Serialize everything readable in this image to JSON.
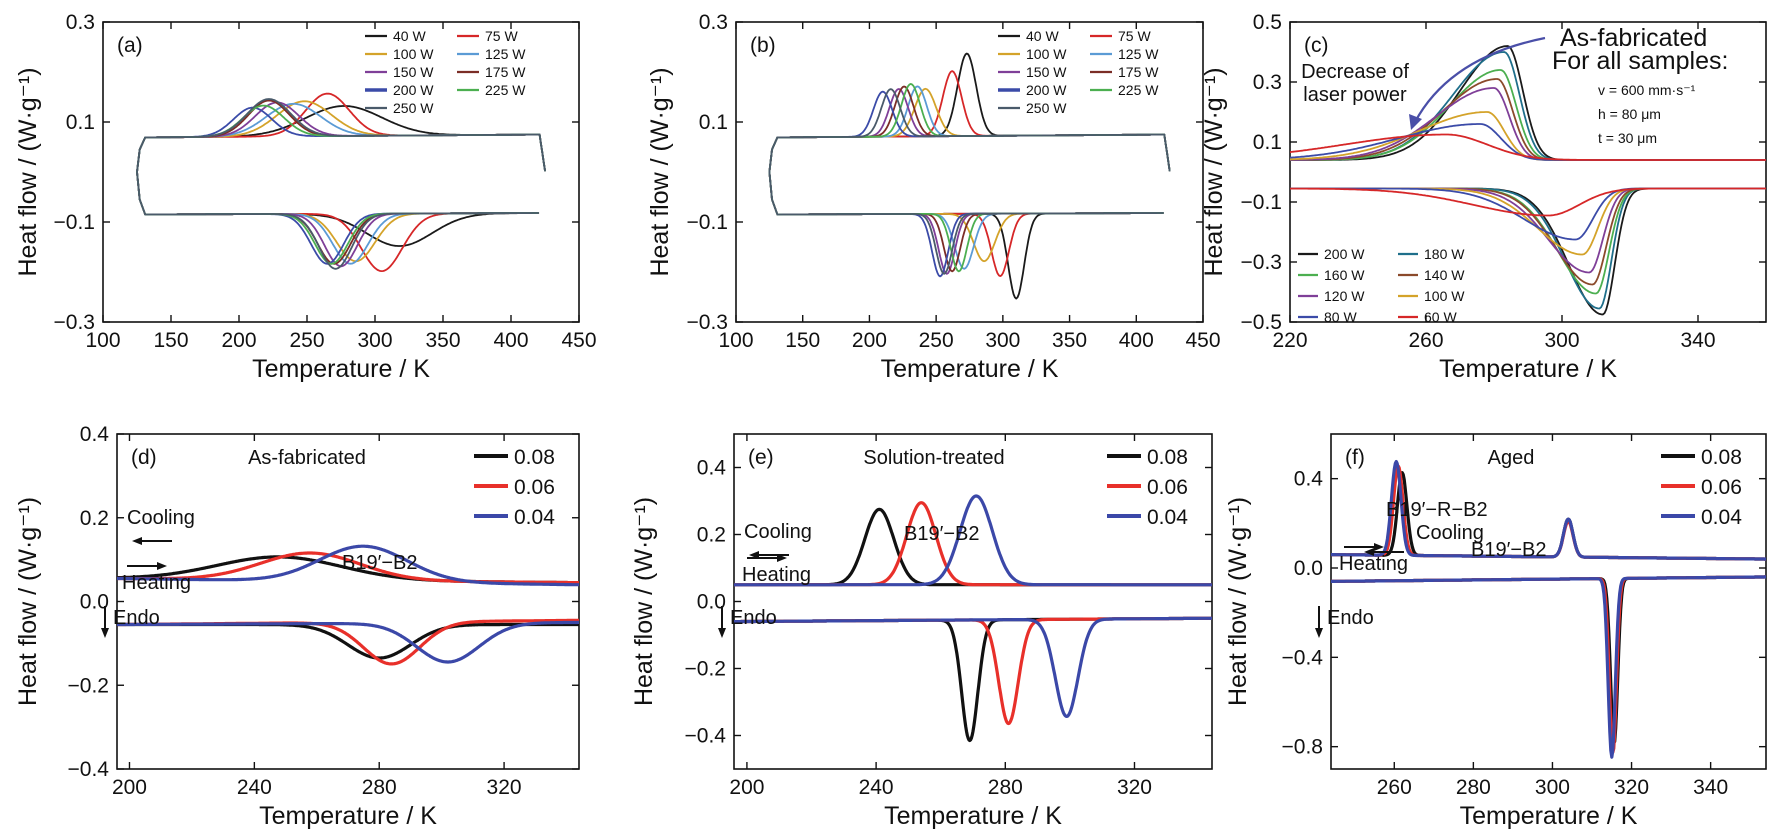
{
  "chart_data": [
    {
      "id": "a",
      "type": "line",
      "panel_label": "(a)",
      "xlabel": "Temperature / K",
      "ylabel": "Heat flow / (W·g⁻¹)",
      "xlim": [
        100,
        450
      ],
      "ylim": [
        -0.3,
        0.3
      ],
      "xticks": [
        100,
        150,
        200,
        250,
        300,
        350,
        400,
        450
      ],
      "yticks": [
        -0.3,
        -0.1,
        0.1,
        0.3
      ],
      "ytick_labels": [
        "−0.3",
        "−0.1",
        "0.1",
        "0.3"
      ],
      "legend_position": "top-right",
      "legend_columns": 2,
      "loop": {
        "x_start": 125,
        "x_end": 425,
        "cool_base": 0.075,
        "heat_base": -0.085
      },
      "series": [
        {
          "name": "40 W",
          "color": "#1a1a1a",
          "cool_peak": {
            "x": 277,
            "h": 0.06,
            "w": 28
          },
          "heat_peak": {
            "x": 318,
            "depth": 0.065,
            "w": 24
          }
        },
        {
          "name": "75 W",
          "color": "#d62728",
          "cool_peak": {
            "x": 265,
            "h": 0.085,
            "w": 16
          },
          "heat_peak": {
            "x": 305,
            "depth": 0.115,
            "w": 15
          }
        },
        {
          "name": "100 W",
          "color": "#d4a32a",
          "cool_peak": {
            "x": 248,
            "h": 0.07,
            "w": 20
          },
          "heat_peak": {
            "x": 286,
            "depth": 0.095,
            "w": 14
          }
        },
        {
          "name": "125 W",
          "color": "#5b9bd5",
          "cool_peak": {
            "x": 240,
            "h": 0.065,
            "w": 20
          },
          "heat_peak": {
            "x": 282,
            "depth": 0.1,
            "w": 13
          }
        },
        {
          "name": "150 W",
          "color": "#7f3f98",
          "cool_peak": {
            "x": 228,
            "h": 0.068,
            "w": 16
          },
          "heat_peak": {
            "x": 275,
            "depth": 0.105,
            "w": 12
          }
        },
        {
          "name": "175 W",
          "color": "#7b2d26",
          "cool_peak": {
            "x": 222,
            "h": 0.072,
            "w": 15
          },
          "heat_peak": {
            "x": 270,
            "depth": 0.1,
            "w": 12
          }
        },
        {
          "name": "200 W",
          "color": "#3b4ba8",
          "cool_peak": {
            "x": 210,
            "h": 0.058,
            "w": 14
          },
          "heat_peak": {
            "x": 265,
            "depth": 0.1,
            "w": 12
          }
        },
        {
          "name": "225 W",
          "color": "#4caf50",
          "cool_peak": {
            "x": 218,
            "h": 0.062,
            "w": 15
          },
          "heat_peak": {
            "x": 268,
            "depth": 0.1,
            "w": 12
          }
        },
        {
          "name": "250 W",
          "color": "#4a5a6a",
          "cool_peak": {
            "x": 222,
            "h": 0.075,
            "w": 16
          },
          "heat_peak": {
            "x": 271,
            "depth": 0.11,
            "w": 12
          }
        }
      ]
    },
    {
      "id": "b",
      "type": "line",
      "panel_label": "(b)",
      "xlabel": "Temperature / K",
      "ylabel": "Heat flow / (W·g⁻¹)",
      "xlim": [
        100,
        450
      ],
      "ylim": [
        -0.3,
        0.3
      ],
      "xticks": [
        100,
        150,
        200,
        250,
        300,
        350,
        400,
        450
      ],
      "yticks": [
        -0.3,
        -0.1,
        0.1,
        0.3
      ],
      "ytick_labels": [
        "−0.3",
        "−0.1",
        "0.1",
        "0.3"
      ],
      "legend_position": "top-right",
      "legend_columns": 2,
      "loop": {
        "x_start": 125,
        "x_end": 425,
        "cool_base": 0.075,
        "heat_base": -0.085
      },
      "series": [
        {
          "name": "40 W",
          "color": "#1a1a1a",
          "cool_peak": {
            "x": 273,
            "h": 0.165,
            "w": 7
          },
          "heat_peak": {
            "x": 310,
            "depth": 0.17,
            "w": 6
          }
        },
        {
          "name": "75 W",
          "color": "#d62728",
          "cool_peak": {
            "x": 262,
            "h": 0.13,
            "w": 7
          },
          "heat_peak": {
            "x": 298,
            "depth": 0.125,
            "w": 6.5
          }
        },
        {
          "name": "100 W",
          "color": "#d4a32a",
          "cool_peak": {
            "x": 242,
            "h": 0.095,
            "w": 8
          },
          "heat_peak": {
            "x": 286,
            "depth": 0.095,
            "w": 8
          }
        },
        {
          "name": "125 W",
          "color": "#5b9bd5",
          "cool_peak": {
            "x": 236,
            "h": 0.1,
            "w": 7
          },
          "heat_peak": {
            "x": 271,
            "depth": 0.11,
            "w": 7
          }
        },
        {
          "name": "150 W",
          "color": "#7f3f98",
          "cool_peak": {
            "x": 222,
            "h": 0.095,
            "w": 7
          },
          "heat_peak": {
            "x": 258,
            "depth": 0.12,
            "w": 6
          }
        },
        {
          "name": "175 W",
          "color": "#7b2d26",
          "cool_peak": {
            "x": 226,
            "h": 0.1,
            "w": 7
          },
          "heat_peak": {
            "x": 262,
            "depth": 0.115,
            "w": 6
          }
        },
        {
          "name": "200 W",
          "color": "#3b4ba8",
          "cool_peak": {
            "x": 210,
            "h": 0.09,
            "w": 7
          },
          "heat_peak": {
            "x": 253,
            "depth": 0.125,
            "w": 6
          }
        },
        {
          "name": "225 W",
          "color": "#4caf50",
          "cool_peak": {
            "x": 231,
            "h": 0.105,
            "w": 7
          },
          "heat_peak": {
            "x": 267,
            "depth": 0.115,
            "w": 6
          }
        },
        {
          "name": "250 W",
          "color": "#4a5a6a",
          "cool_peak": {
            "x": 216,
            "h": 0.095,
            "w": 7
          },
          "heat_peak": {
            "x": 256,
            "depth": 0.12,
            "w": 6
          }
        }
      ]
    },
    {
      "id": "c",
      "type": "line",
      "panel_label": "(c)",
      "xlabel": "Temperature / K",
      "ylabel": "Heat flow / (W·g⁻¹)",
      "xlim": [
        220,
        360
      ],
      "ylim": [
        -0.5,
        0.5
      ],
      "xticks": [
        220,
        260,
        300,
        340
      ],
      "yticks": [
        -0.5,
        -0.3,
        -0.1,
        0.1,
        0.3,
        0.5
      ],
      "ytick_labels": [
        "−0.5",
        "−0.3",
        "−0.1",
        "0.1",
        "0.3",
        "0.5"
      ],
      "legend_position": "bottom-left",
      "legend_columns": 2,
      "annotations": {
        "arrow_text": [
          "Decrease of",
          "laser power"
        ],
        "info_title": [
          "As-fabricated",
          "For all samples:"
        ],
        "params": [
          "v = 600 mm·s⁻¹",
          "h = 80 μm",
          "t = 30 μm"
        ]
      },
      "loop": {
        "cool_base": 0.04,
        "heat_base": -0.055
      },
      "series": [
        {
          "name": "200 W",
          "color": "#1a1a1a",
          "cool_peak": {
            "x": 284,
            "h": 0.38,
            "w": 4.5,
            "tail": 14
          },
          "heat_peak": {
            "x": 312,
            "depth": 0.42,
            "w": 3.5,
            "tail": 10
          }
        },
        {
          "name": "180 W",
          "color": "#1f6f8b",
          "cool_peak": {
            "x": 283,
            "h": 0.36,
            "w": 4.5,
            "tail": 15
          },
          "heat_peak": {
            "x": 311,
            "depth": 0.4,
            "w": 3.5,
            "tail": 10
          }
        },
        {
          "name": "160 W",
          "color": "#4caf50",
          "cool_peak": {
            "x": 282,
            "h": 0.3,
            "w": 4.5,
            "tail": 15
          },
          "heat_peak": {
            "x": 310,
            "depth": 0.35,
            "w": 3.8,
            "tail": 11
          }
        },
        {
          "name": "140 W",
          "color": "#8b4a2b",
          "cool_peak": {
            "x": 281,
            "h": 0.27,
            "w": 4.5,
            "tail": 16
          },
          "heat_peak": {
            "x": 309,
            "depth": 0.32,
            "w": 4,
            "tail": 11
          }
        },
        {
          "name": "120 W",
          "color": "#7f3f98",
          "cool_peak": {
            "x": 280,
            "h": 0.24,
            "w": 4.5,
            "tail": 17
          },
          "heat_peak": {
            "x": 308,
            "depth": 0.28,
            "w": 4,
            "tail": 12
          }
        },
        {
          "name": "100 W",
          "color": "#d4a32a",
          "cool_peak": {
            "x": 278,
            "h": 0.16,
            "w": 5,
            "tail": 20
          },
          "heat_peak": {
            "x": 306,
            "depth": 0.22,
            "w": 4.5,
            "tail": 13
          }
        },
        {
          "name": "80 W",
          "color": "#3b4ba8",
          "cool_peak": {
            "x": 276,
            "h": 0.12,
            "w": 6,
            "tail": 24
          },
          "heat_peak": {
            "x": 304,
            "depth": 0.17,
            "w": 5,
            "tail": 15
          }
        },
        {
          "name": "60 W",
          "color": "#d62728",
          "cool_peak": {
            "x": 266,
            "h": 0.085,
            "w": 12,
            "tail": 30
          },
          "heat_peak": {
            "x": 296,
            "depth": 0.09,
            "w": 9,
            "tail": 22
          }
        }
      ]
    },
    {
      "id": "d",
      "type": "line",
      "panel_label": "(d)",
      "title": "As-fabricated",
      "xlabel": "Temperature / K",
      "ylabel": "Heat flow / (W·g⁻¹)",
      "xlim": [
        196,
        344
      ],
      "ylim": [
        -0.4,
        0.4
      ],
      "xticks": [
        200,
        240,
        280,
        320
      ],
      "yticks": [
        -0.4,
        -0.2,
        0.0,
        0.2,
        0.4
      ],
      "ytick_labels": [
        "−0.4",
        "−0.2",
        "0.0",
        "0.2",
        "0.4"
      ],
      "legend_position": "top-right",
      "legend_columns": 1,
      "annotations": {
        "cooling": "Cooling",
        "heating": "Heating",
        "transition": "B19′−B2",
        "endo": "Endo"
      },
      "series": [
        {
          "name": "0.08",
          "color": "#111111",
          "cool_base": [
            0.055,
            0.045
          ],
          "heat_base": [
            -0.055,
            -0.055
          ],
          "cool_peak": {
            "x": 248,
            "h": 0.055,
            "w": 20
          },
          "heat_peak": {
            "x": 280,
            "depth": 0.08,
            "w": 10
          }
        },
        {
          "name": "0.06",
          "color": "#e8302a",
          "cool_base": [
            0.055,
            0.045
          ],
          "heat_base": [
            -0.055,
            -0.045
          ],
          "cool_peak": {
            "x": 258,
            "h": 0.065,
            "w": 16
          },
          "heat_peak": {
            "x": 284,
            "depth": 0.1,
            "w": 9
          }
        },
        {
          "name": "0.04",
          "color": "#3b48a8",
          "cool_base": [
            0.055,
            0.04
          ],
          "heat_base": [
            -0.055,
            -0.05
          ],
          "cool_peak": {
            "x": 275,
            "h": 0.085,
            "w": 14
          },
          "heat_peak": {
            "x": 302,
            "depth": 0.093,
            "w": 10
          }
        }
      ]
    },
    {
      "id": "e",
      "type": "line",
      "panel_label": "(e)",
      "title": "Solution-treated",
      "xlabel": "Temperature / K",
      "ylabel": "Heat flow / (W·g⁻¹)",
      "xlim": [
        196,
        344
      ],
      "ylim": [
        -0.5,
        0.5
      ],
      "xticks": [
        200,
        240,
        280,
        320
      ],
      "yticks": [
        -0.4,
        -0.2,
        0.0,
        0.2,
        0.4
      ],
      "ytick_labels": [
        "−0.4",
        "−0.2",
        "0.0",
        "0.2",
        "0.4"
      ],
      "legend_position": "top-right",
      "legend_columns": 1,
      "annotations": {
        "cooling": "Cooling",
        "heating": "Heating",
        "transition": "B19′−B2",
        "endo": "Endo"
      },
      "series": [
        {
          "name": "0.08",
          "color": "#111111",
          "cool_base": [
            0.05,
            0.05
          ],
          "heat_base": [
            -0.06,
            -0.05
          ],
          "cool_peak": {
            "x": 241,
            "h": 0.225,
            "w": 4.5
          },
          "heat_peak": {
            "x": 269,
            "depth": 0.36,
            "w": 2.5
          }
        },
        {
          "name": "0.06",
          "color": "#e8302a",
          "cool_base": [
            0.05,
            0.05
          ],
          "heat_base": [
            -0.06,
            -0.05
          ],
          "cool_peak": {
            "x": 254,
            "h": 0.245,
            "w": 4.5
          },
          "heat_peak": {
            "x": 281,
            "depth": 0.31,
            "w": 3
          }
        },
        {
          "name": "0.04",
          "color": "#3b48a8",
          "cool_base": [
            0.05,
            0.05
          ],
          "heat_base": [
            -0.06,
            -0.05
          ],
          "cool_peak": {
            "x": 271,
            "h": 0.265,
            "w": 5
          },
          "heat_peak": {
            "x": 299,
            "depth": 0.29,
            "w": 3.5
          }
        }
      ]
    },
    {
      "id": "f",
      "type": "line",
      "panel_label": "(f)",
      "title": "Aged",
      "xlabel": "Temperature / K",
      "ylabel": "Heat flow / (W·g⁻¹)",
      "xlim": [
        244,
        354
      ],
      "ylim": [
        -0.9,
        0.6
      ],
      "xticks": [
        260,
        280,
        300,
        320,
        340
      ],
      "yticks": [
        -0.8,
        -0.4,
        0.0,
        0.4
      ],
      "ytick_labels": [
        "−0.8",
        "−0.4",
        "0.0",
        "0.4"
      ],
      "legend_position": "top-right",
      "legend_columns": 1,
      "annotations": {
        "cooling": "Cooling",
        "heating": "Heating",
        "transition_cooling": "B19′−R−B2",
        "transition_heating": "B19′−B2",
        "endo": "Endo"
      },
      "series": [
        {
          "name": "0.08",
          "color": "#111111",
          "cool_base": [
            0.06,
            0.04
          ],
          "heat_base": [
            -0.06,
            -0.04
          ],
          "cool_peaks": [
            {
              "x": 262,
              "h": 0.37,
              "w": 1.2
            },
            {
              "x": 304,
              "h": 0.17,
              "w": 1.2
            }
          ],
          "heat_peak": {
            "x": 315.6,
            "depth": 0.74,
            "w": 0.9
          }
        },
        {
          "name": "0.06",
          "color": "#e8302a",
          "cool_base": [
            0.06,
            0.04
          ],
          "heat_base": [
            -0.06,
            -0.04
          ],
          "cool_peaks": [
            {
              "x": 261,
              "h": 0.4,
              "w": 1.2
            },
            {
              "x": 304,
              "h": 0.16,
              "w": 1.2
            }
          ],
          "heat_peak": {
            "x": 315.3,
            "depth": 0.78,
            "w": 0.9
          }
        },
        {
          "name": "0.04",
          "color": "#3b48a8",
          "cool_base": [
            0.06,
            0.04
          ],
          "heat_base": [
            -0.06,
            -0.04
          ],
          "cool_peaks": [
            {
              "x": 260.5,
              "h": 0.42,
              "w": 1.2
            },
            {
              "x": 304,
              "h": 0.17,
              "w": 1.2
            }
          ],
          "heat_peak": {
            "x": 315,
            "depth": 0.8,
            "w": 0.9
          }
        }
      ]
    }
  ]
}
